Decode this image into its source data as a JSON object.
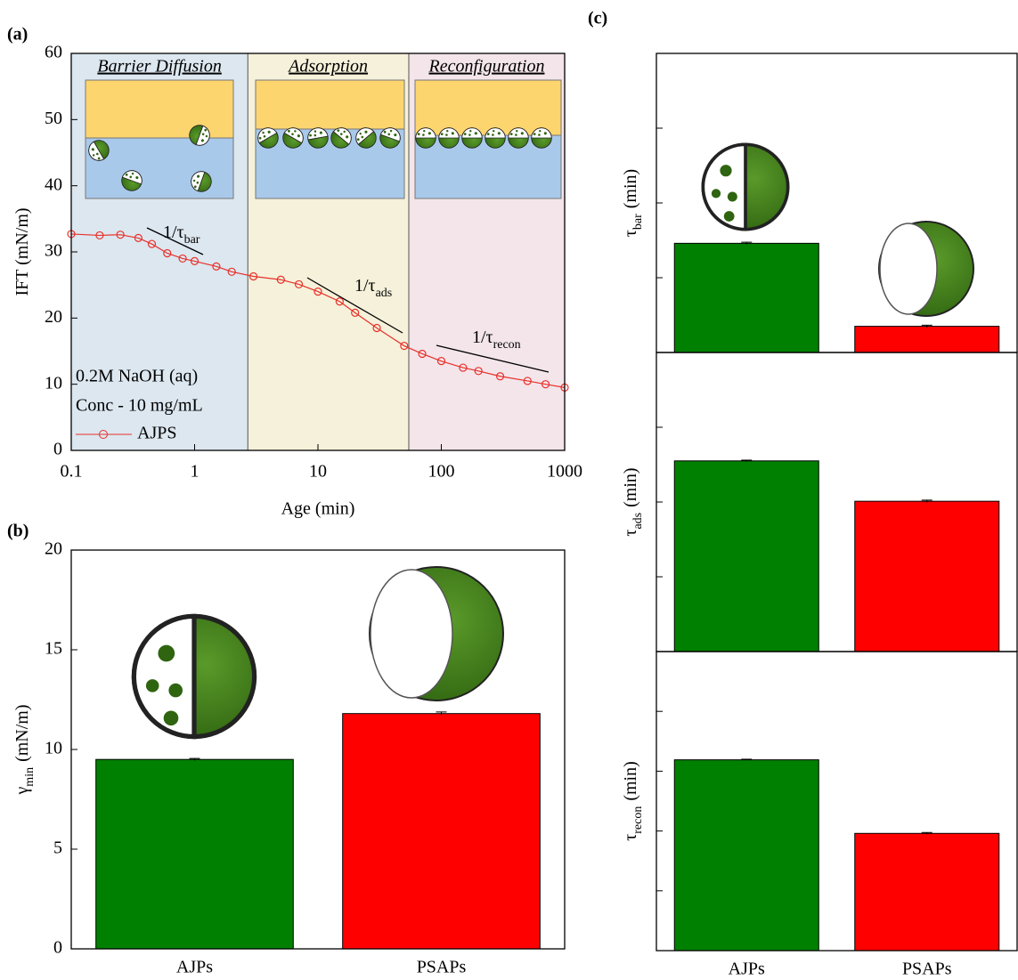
{
  "chart_data": [
    {
      "type": "line",
      "panel_label": "(a)",
      "x_label": "Age (min)",
      "y_label": {
        "text": "IFT (mN/m)"
      },
      "xscale": "log",
      "xlim": [
        0.1,
        1000
      ],
      "xticks": [
        0.1,
        1,
        10,
        100,
        1000
      ],
      "ylim": [
        0,
        60
      ],
      "yticks": [
        0,
        10,
        20,
        30,
        40,
        50,
        60
      ],
      "legend": "bottom-left",
      "regions": [
        {
          "label": "Barrier Diffusion",
          "x0": 0.1,
          "x1": 2.7,
          "color": "#dce7f0"
        },
        {
          "label": "Adsorption",
          "x0": 2.7,
          "x1": 54.5,
          "color": "#f5f1da"
        },
        {
          "label": "Reconfiguration",
          "x0": 54.5,
          "x1": 1000,
          "color": "#f3e5ea"
        }
      ],
      "annotations": [
        {
          "text": "1/τ",
          "sub": "bar"
        },
        {
          "text": "1/τ",
          "sub": "ads"
        },
        {
          "text": "1/τ",
          "sub": "recon"
        }
      ],
      "notes": [
        "0.2M NaOH (aq)",
        "Conc - 10 mg/mL"
      ],
      "x": [
        0.1,
        0.17,
        0.25,
        0.35,
        0.45,
        0.6,
        0.8,
        1,
        1.5,
        2,
        3,
        5,
        7,
        10,
        15,
        20,
        30,
        50,
        70,
        100,
        150,
        200,
        300,
        500,
        700,
        1000
      ],
      "series": [
        {
          "name": "AJPS",
          "color": "#e8302a",
          "values": [
            32.7,
            32.5,
            32.6,
            32.1,
            31.2,
            29.8,
            29.0,
            28.6,
            27.8,
            27.0,
            26.3,
            25.8,
            25.1,
            24.0,
            22.5,
            20.8,
            18.5,
            15.8,
            14.6,
            13.5,
            12.5,
            12.0,
            11.2,
            10.5,
            10.0,
            9.5
          ]
        }
      ]
    },
    {
      "type": "bar",
      "panel_label": "(b)",
      "y_label": {
        "text": "γ",
        "sub": "min",
        "rest": "(mN/m)"
      },
      "categories": [
        "AJPs",
        "PSAPs"
      ],
      "colors": [
        "#008000",
        "#ff0000"
      ],
      "values": [
        9.5,
        11.8
      ],
      "errors": [
        0.05,
        0.08
      ],
      "ylim": [
        0,
        20
      ],
      "yticks": [
        0,
        5,
        10,
        15,
        20
      ],
      "tick_labels": true
    },
    {
      "type": "bar",
      "panel_label": "(c)",
      "y_label": {
        "text": "τ",
        "sub": "bar",
        "rest": "(min)"
      },
      "categories": [
        null,
        null
      ],
      "colors": [
        "#008000",
        "#ff0000"
      ],
      "values": [
        1.46,
        0.35
      ],
      "errors": [
        0.015,
        0.015
      ],
      "ylim": [
        0,
        4
      ],
      "yticks": [
        1,
        2,
        3
      ],
      "tick_labels": false
    },
    {
      "type": "bar",
      "y_label": {
        "text": "τ",
        "sub": "ads",
        "rest": "(min)"
      },
      "categories": [
        null,
        null
      ],
      "colors": [
        "#008000",
        "#ff0000"
      ],
      "values": [
        2.55,
        2.01
      ],
      "errors": [
        0.01,
        0.015
      ],
      "ylim": [
        0,
        4
      ],
      "yticks": [
        1,
        2,
        3
      ],
      "tick_labels": false
    },
    {
      "type": "bar",
      "y_label": {
        "text": "τ",
        "sub": "recon",
        "rest": "(min)"
      },
      "categories": [
        "AJPs",
        "PSAPs"
      ],
      "colors": [
        "#008000",
        "#ff0000"
      ],
      "values": [
        3.19,
        1.96
      ],
      "errors": [
        0.01,
        0.015
      ],
      "ylim": [
        0,
        5
      ],
      "yticks": [
        1,
        2,
        3,
        4
      ],
      "tick_labels": false
    }
  ]
}
